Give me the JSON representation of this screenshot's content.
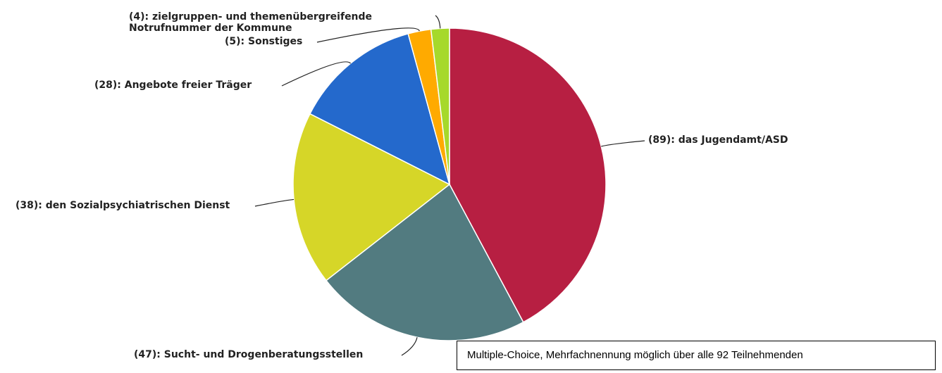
{
  "chart_data": {
    "type": "pie",
    "categories": [
      "(89): das Jugendamt/ASD",
      "(47): Sucht- und Drogenberatungsstellen",
      "(38): den Sozialpsychiatrischen Dienst",
      "(28): Angebote freier Träger",
      "(5): Sonstiges",
      "(4): zielgruppen- und themenübergreifende\nNotrufnummer der Kommune"
    ],
    "values": [
      89,
      47,
      38,
      28,
      5,
      4
    ],
    "colors": [
      "#b71f42",
      "#527b80",
      "#d6d628",
      "#2469cc",
      "#ffaa00",
      "#a6d92b"
    ],
    "annotation": "Multiple-Choice, Mehrfachnennung möglich über alle 92 Teilnehmenden"
  }
}
